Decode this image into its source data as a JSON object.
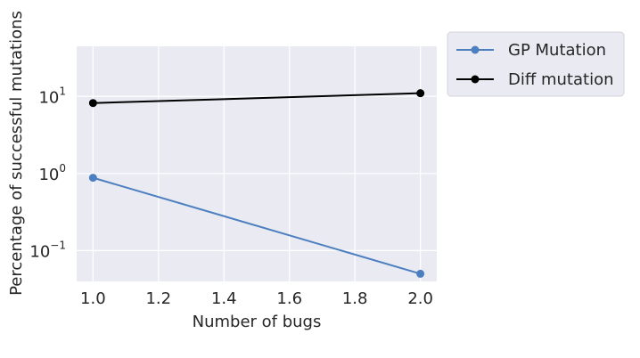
{
  "chart_data": {
    "type": "line",
    "xlabel": "Number of bugs",
    "ylabel": "Percentage of successful mutations",
    "xlim": [
      0.95,
      2.05
    ],
    "ylim_log10": [
      -1.4,
      1.65
    ],
    "yscale": "log",
    "grid": true,
    "legend_position": "outside-top-right",
    "x_ticks": [
      1.0,
      1.2,
      1.4,
      1.6,
      1.8,
      2.0
    ],
    "x_tick_labels": [
      "1.0",
      "1.2",
      "1.4",
      "1.6",
      "1.8",
      "2.0"
    ],
    "y_ticks": [
      {
        "value": 10,
        "base": "10",
        "exp": "1"
      },
      {
        "value": 1,
        "base": "10",
        "exp": "0"
      },
      {
        "value": 0.1,
        "base": "10",
        "exp": "−1"
      }
    ],
    "series": [
      {
        "name": "GP Mutation",
        "color": "#4c7fbf",
        "x": [
          1.0,
          2.0
        ],
        "y": [
          0.88,
          0.05
        ]
      },
      {
        "name": "Diff mutation",
        "color": "#000000",
        "x": [
          1.0,
          2.0
        ],
        "y": [
          8.2,
          11.0
        ]
      }
    ]
  }
}
